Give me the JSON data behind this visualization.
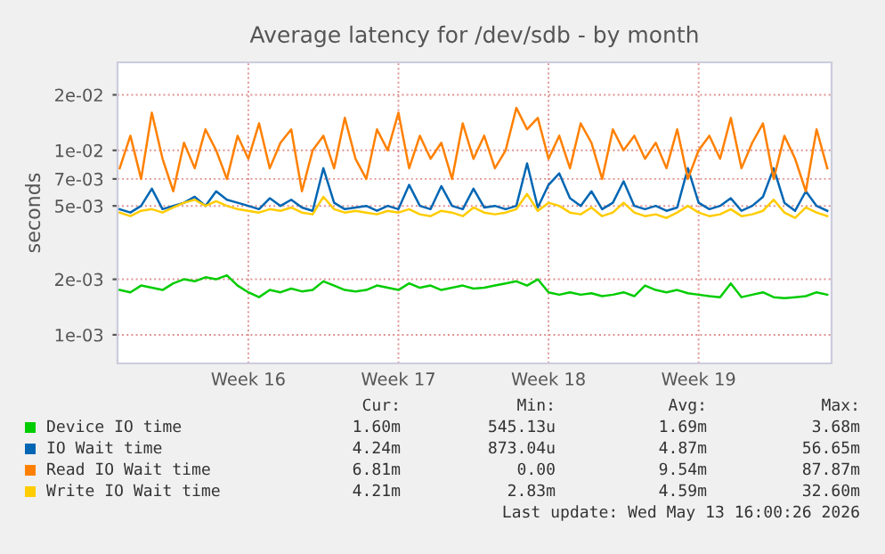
{
  "chart_data": {
    "type": "line",
    "title": "Average latency for /dev/sdb - by month",
    "ylabel": "seconds",
    "log": true,
    "grid": true,
    "legend": "bottom",
    "categories": [
      null,
      null,
      null,
      null,
      null,
      null,
      null,
      null,
      null,
      null,
      null,
      null,
      "Week 16",
      null,
      null,
      null,
      null,
      null,
      null,
      null,
      null,
      null,
      null,
      null,
      null,
      null,
      "Week 17",
      null,
      null,
      null,
      null,
      null,
      null,
      null,
      null,
      null,
      null,
      null,
      null,
      null,
      "Week 18",
      null,
      null,
      null,
      null,
      null,
      null,
      null,
      null,
      null,
      null,
      null,
      null,
      null,
      "Week 19",
      null,
      null,
      null,
      null,
      null,
      null,
      null,
      null,
      null,
      null,
      null,
      null
    ],
    "ylim": [
      0.0007,
      0.03
    ],
    "yticks": [
      {
        "value": 0.001,
        "label": "1e-03"
      },
      {
        "value": 0.002,
        "label": "2e-03"
      },
      {
        "value": 0.005,
        "label": "5e-03"
      },
      {
        "value": 0.007,
        "label": "7e-03"
      },
      {
        "value": 0.01,
        "label": "1e-02"
      },
      {
        "value": 0.02,
        "label": "2e-02"
      }
    ],
    "series": [
      {
        "name": "Device IO time",
        "color": "#00cc00",
        "values": [
          0.00175,
          0.0017,
          0.00185,
          0.0018,
          0.00175,
          0.0019,
          0.002,
          0.00195,
          0.00205,
          0.002,
          0.0021,
          0.00185,
          0.0017,
          0.0016,
          0.00175,
          0.0017,
          0.00178,
          0.00172,
          0.00175,
          0.00195,
          0.00185,
          0.00175,
          0.00172,
          0.00175,
          0.00185,
          0.0018,
          0.00175,
          0.0019,
          0.0018,
          0.00185,
          0.00175,
          0.0018,
          0.00185,
          0.00178,
          0.0018,
          0.00185,
          0.0019,
          0.00195,
          0.00185,
          0.002,
          0.0017,
          0.00165,
          0.0017,
          0.00165,
          0.00168,
          0.00162,
          0.00165,
          0.0017,
          0.00162,
          0.00185,
          0.00175,
          0.0017,
          0.00175,
          0.00168,
          0.00165,
          0.00162,
          0.0016,
          0.0019,
          0.0016,
          0.00165,
          0.0017,
          0.0016,
          0.00158,
          0.0016,
          0.00162,
          0.0017,
          0.00165
        ]
      },
      {
        "name": "IO Wait time",
        "color": "#0066b3",
        "values": [
          0.0048,
          0.0046,
          0.005,
          0.0062,
          0.0048,
          0.005,
          0.0052,
          0.0056,
          0.005,
          0.006,
          0.0054,
          0.0052,
          0.005,
          0.0048,
          0.0055,
          0.005,
          0.0054,
          0.0049,
          0.0047,
          0.008,
          0.0052,
          0.0048,
          0.0049,
          0.005,
          0.0047,
          0.005,
          0.0048,
          0.0065,
          0.005,
          0.0048,
          0.0064,
          0.005,
          0.0048,
          0.0062,
          0.0049,
          0.005,
          0.0048,
          0.005,
          0.0085,
          0.0049,
          0.0065,
          0.0075,
          0.0055,
          0.005,
          0.006,
          0.0048,
          0.0052,
          0.0068,
          0.005,
          0.0048,
          0.005,
          0.0047,
          0.0049,
          0.008,
          0.0052,
          0.0048,
          0.005,
          0.0055,
          0.0047,
          0.005,
          0.0056,
          0.008,
          0.0052,
          0.0047,
          0.006,
          0.005,
          0.0047
        ]
      },
      {
        "name": "Read IO Wait time",
        "color": "#ff8000",
        "values": [
          0.008,
          0.012,
          0.007,
          0.016,
          0.009,
          0.006,
          0.011,
          0.008,
          0.013,
          0.01,
          0.007,
          0.012,
          0.009,
          0.014,
          0.008,
          0.011,
          0.013,
          0.006,
          0.01,
          0.012,
          0.008,
          0.015,
          0.009,
          0.007,
          0.013,
          0.01,
          0.016,
          0.008,
          0.012,
          0.009,
          0.011,
          0.007,
          0.014,
          0.009,
          0.012,
          0.008,
          0.01,
          0.017,
          0.013,
          0.015,
          0.009,
          0.012,
          0.008,
          0.014,
          0.011,
          0.007,
          0.013,
          0.01,
          0.012,
          0.009,
          0.011,
          0.008,
          0.013,
          0.007,
          0.01,
          0.012,
          0.009,
          0.015,
          0.008,
          0.011,
          0.014,
          0.007,
          0.012,
          0.009,
          0.006,
          0.013,
          0.008
        ]
      },
      {
        "name": "Write IO Wait time",
        "color": "#ffcc00",
        "values": [
          0.0046,
          0.0044,
          0.0047,
          0.0048,
          0.0046,
          0.0049,
          0.0052,
          0.0054,
          0.005,
          0.0053,
          0.005,
          0.0048,
          0.0047,
          0.0046,
          0.0048,
          0.0047,
          0.0049,
          0.0046,
          0.0045,
          0.0056,
          0.0048,
          0.0046,
          0.0047,
          0.0046,
          0.0045,
          0.0047,
          0.0046,
          0.0048,
          0.0045,
          0.0044,
          0.0047,
          0.0046,
          0.0044,
          0.0049,
          0.0046,
          0.0045,
          0.0046,
          0.0048,
          0.0058,
          0.0047,
          0.0052,
          0.005,
          0.0046,
          0.0045,
          0.0049,
          0.0044,
          0.0046,
          0.0052,
          0.0046,
          0.0044,
          0.0045,
          0.0043,
          0.0046,
          0.005,
          0.0046,
          0.0044,
          0.0045,
          0.0048,
          0.0044,
          0.0045,
          0.0047,
          0.0054,
          0.0046,
          0.0043,
          0.0049,
          0.0046,
          0.0044
        ]
      }
    ],
    "annotations": [
      "Cur:",
      "Min:",
      "Avg:",
      "Max:",
      "1.60m",
      "545.13u",
      "1.69m",
      "3.68m",
      "4.24m",
      "873.04u",
      "4.87m",
      "56.65m",
      "6.81m",
      "0.00",
      "9.54m",
      "87.87m",
      "4.21m",
      "2.83m",
      "4.59m",
      "32.60m",
      "Last update: Wed May 13 16:00:26 2026"
    ]
  }
}
